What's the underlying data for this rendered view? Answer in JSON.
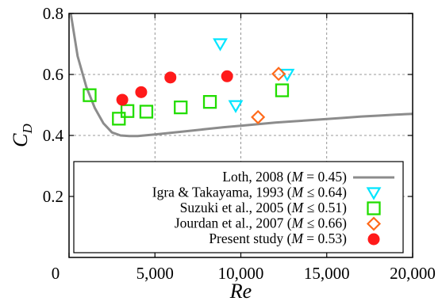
{
  "chart_data": {
    "type": "scatter",
    "title": "",
    "xlabel": "Re",
    "ylabel": "C_D",
    "ylabel_main": "C",
    "ylabel_sub": "D",
    "xlim": [
      0,
      20000
    ],
    "ylim": [
      0.2,
      0.8
    ],
    "x_ticks": [
      0,
      5000,
      10000,
      15000,
      20000
    ],
    "x_tick_labels": [
      "0",
      "5,000",
      "10,000",
      "15,000",
      "20,000"
    ],
    "y_ticks": [
      0.2,
      0.4,
      0.6,
      0.8
    ],
    "y_tick_labels": [
      "0.2",
      "0.4",
      "0.6",
      "0.8"
    ],
    "grid": true,
    "legend_position": "bottom-right",
    "series": [
      {
        "name": "Loth, 2008 (M = 0.45)",
        "label_parts": [
          "Loth, 2008 (",
          "M",
          " = 0.45)"
        ],
        "style": "line",
        "color": "#8c8c8c",
        "x": [
          100,
          500,
          1000,
          1500,
          2000,
          2500,
          3000,
          3500,
          4000,
          5000,
          6000,
          7000,
          8000,
          9000,
          10000,
          11000,
          12000,
          13000,
          14000,
          15000,
          16000,
          17000,
          18000,
          19000,
          20000
        ],
        "y": [
          0.8,
          0.66,
          0.56,
          0.49,
          0.44,
          0.41,
          0.4,
          0.398,
          0.398,
          0.403,
          0.409,
          0.415,
          0.421,
          0.427,
          0.432,
          0.437,
          0.442,
          0.446,
          0.45,
          0.454,
          0.458,
          0.462,
          0.465,
          0.468,
          0.471
        ]
      },
      {
        "name": "Igra & Takayama, 1993 (M ≤ 0.64)",
        "label_parts": [
          "Igra & Takayama, 1993 (",
          "M",
          " ≤ 0.64)"
        ],
        "style": "triangle-down",
        "color": "#00e5ff",
        "x": [
          8800,
          9700,
          12700
        ],
        "y": [
          0.7,
          0.497,
          0.6
        ]
      },
      {
        "name": "Suzuki et al., 2005 (M ≤ 0.51)",
        "label_parts": [
          "Suzuki et al., 2005 (",
          "M",
          " ≤ 0.51)"
        ],
        "style": "square",
        "color": "#22dd00",
        "x": [
          1200,
          2900,
          3400,
          4500,
          6500,
          8200,
          12400
        ],
        "y": [
          0.532,
          0.455,
          0.48,
          0.478,
          0.492,
          0.51,
          0.548
        ]
      },
      {
        "name": "Jourdan et al., 2007 (M ≤ 0.66)",
        "label_parts": [
          "Jourdan et al., 2007 (",
          "M",
          " ≤ 0.66)"
        ],
        "style": "diamond",
        "color": "#ff6a1a",
        "x": [
          11000,
          12200
        ],
        "y": [
          0.46,
          0.602
        ]
      },
      {
        "name": "Present study (M = 0.53)",
        "label_parts": [
          "Present study (",
          "M",
          " = 0.53)"
        ],
        "style": "circle",
        "color": "#ff1a1a",
        "x": [
          3100,
          4200,
          5900,
          9200
        ],
        "y": [
          0.517,
          0.542,
          0.59,
          0.594
        ]
      }
    ]
  }
}
